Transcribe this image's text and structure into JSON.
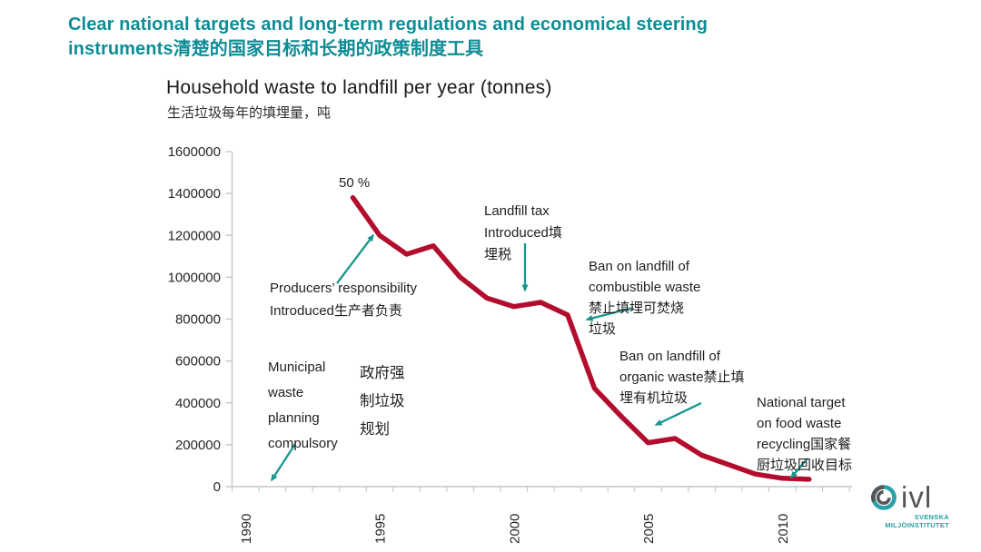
{
  "slide": {
    "title": "Clear national targets and long-term regulations and economical steering\ninstruments清楚的国家目标和长期的政策制度工具"
  },
  "chart_data": {
    "type": "line",
    "title": "Household waste to landfill per year (tonnes)",
    "subtitle": "生活垃圾每年的填埋量，吨",
    "xlabel": "",
    "ylabel": "",
    "xlim": [
      1990,
      2012
    ],
    "ylim": [
      0,
      1600000
    ],
    "grid": false,
    "legend": "none",
    "line_color": "#b30d2e",
    "y_ticks": [
      0,
      200000,
      400000,
      600000,
      800000,
      1000000,
      1200000,
      1400000,
      1600000
    ],
    "x_tick_labels": [
      "1990",
      "1995",
      "2000",
      "2005",
      "2010"
    ],
    "series": [
      {
        "name": "Household waste to landfill",
        "x": [
          1994,
          1995,
          1996,
          1997,
          1998,
          1999,
          2000,
          2001,
          2002,
          2003,
          2004,
          2005,
          2006,
          2007,
          2008,
          2009,
          2010,
          2011
        ],
        "values": [
          1380000,
          1200000,
          1110000,
          1150000,
          1000000,
          900000,
          860000,
          880000,
          820000,
          470000,
          335000,
          210000,
          230000,
          150000,
          105000,
          60000,
          40000,
          35000
        ]
      }
    ],
    "annotations": {
      "fifty_percent": "50 %",
      "producers": "Producers’ responsibility\nIntroduced生产者负责",
      "municipal_en": "Municipal\nwaste\nplanning\ncompulsory",
      "municipal_zh": "政府强\n制垃圾\n规划",
      "landfill_tax": "Landfill tax\nIntroduced填\n埋税",
      "combustible": "Ban on landfill of\ncombustible waste\n禁止填埋可焚烧\n垃圾",
      "organic": "Ban on landfill of\norganic waste禁止填\n埋有机垃圾",
      "national_target": "National target\non food waste\nrecycling国家餐\n厨垃圾回收目标"
    }
  },
  "logo": {
    "text": "ivl",
    "subtitle": "SVENSKA\nMILJÖINSTITUTET"
  },
  "colors": {
    "title_teal": "#0e8d96",
    "arrow_teal": "#17968f",
    "line_red": "#b30d2e",
    "axis_gray": "#c6c6c6",
    "tick_text": "#262626",
    "logo_gray": "#55565a",
    "logo_teal": "#2aa0a8"
  }
}
